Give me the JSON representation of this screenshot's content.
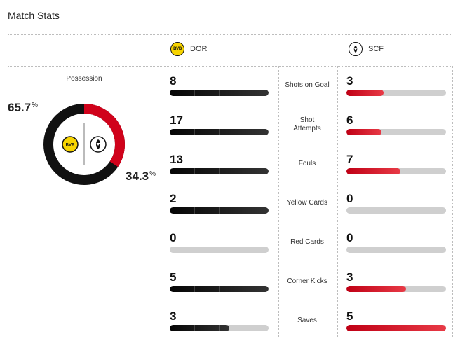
{
  "header": {
    "title": "Match Stats"
  },
  "teams": {
    "home": {
      "abbr": "DOR",
      "badge_text": "BVB",
      "color": "#111111"
    },
    "away": {
      "abbr": "SCF",
      "color": "#d0021b"
    }
  },
  "possession": {
    "label": "Possession",
    "home_value": "65.7",
    "away_value": "34.3",
    "unit": "%",
    "home_fraction": 0.657
  },
  "stats": [
    {
      "label": "Shots on Goal",
      "home": "8",
      "away": "3",
      "home_fraction": 1.0,
      "away_fraction": 0.375
    },
    {
      "label": "Shot Attempts",
      "home": "17",
      "away": "6",
      "home_fraction": 1.0,
      "away_fraction": 0.35
    },
    {
      "label": "Fouls",
      "home": "13",
      "away": "7",
      "home_fraction": 1.0,
      "away_fraction": 0.54
    },
    {
      "label": "Yellow Cards",
      "home": "2",
      "away": "0",
      "home_fraction": 1.0,
      "away_fraction": 0
    },
    {
      "label": "Red Cards",
      "home": "0",
      "away": "0",
      "home_fraction": 0,
      "away_fraction": 0
    },
    {
      "label": "Corner Kicks",
      "home": "5",
      "away": "3",
      "home_fraction": 1.0,
      "away_fraction": 0.6
    },
    {
      "label": "Saves",
      "home": "3",
      "away": "5",
      "home_fraction": 0.6,
      "away_fraction": 1.0
    }
  ]
}
